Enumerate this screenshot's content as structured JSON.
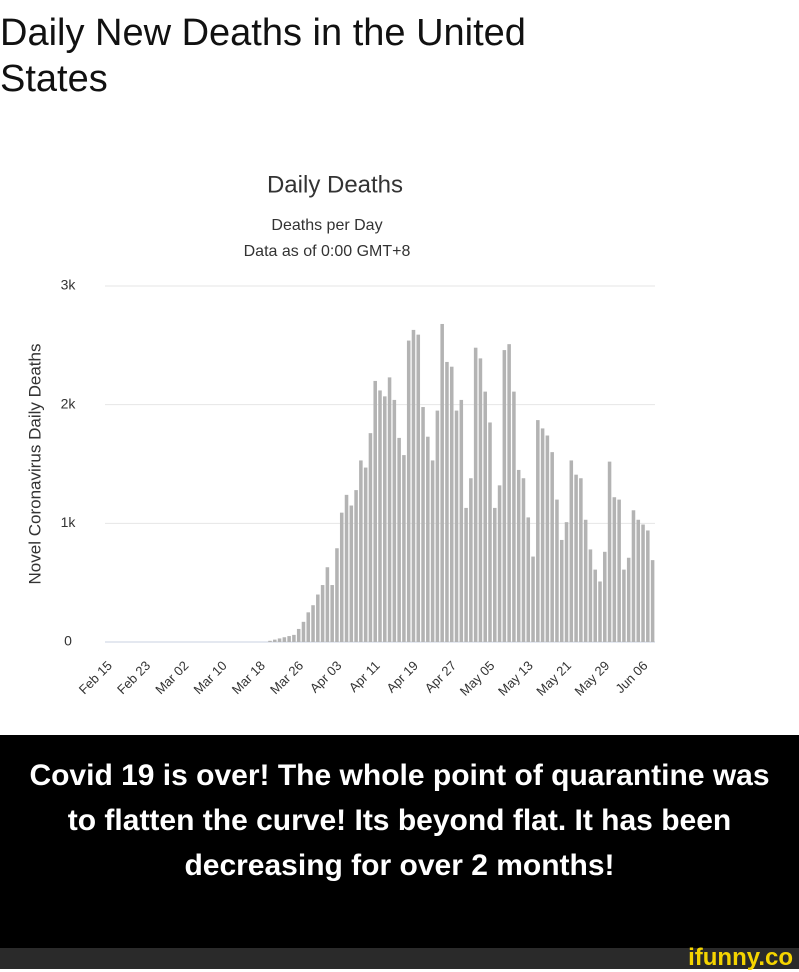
{
  "header": {
    "title": "Daily New Deaths in the United States"
  },
  "chart_data": {
    "type": "bar",
    "title": "Daily Deaths",
    "subtitle": "Deaths per Day",
    "note": "Data as of 0:00 GMT+8",
    "y_label": "Novel Coronavirus Daily Deaths",
    "categories": [
      "Feb 15",
      null,
      null,
      null,
      null,
      null,
      null,
      null,
      "Feb 23",
      null,
      null,
      null,
      null,
      null,
      null,
      null,
      "Mar 02",
      null,
      null,
      null,
      null,
      null,
      null,
      null,
      "Mar 10",
      null,
      null,
      null,
      null,
      null,
      null,
      null,
      "Mar 18",
      null,
      null,
      null,
      null,
      null,
      null,
      null,
      "Mar 26",
      null,
      null,
      null,
      null,
      null,
      null,
      null,
      "Apr 03",
      null,
      null,
      null,
      null,
      null,
      null,
      null,
      "Apr 11",
      null,
      null,
      null,
      null,
      null,
      null,
      null,
      "Apr 19",
      null,
      null,
      null,
      null,
      null,
      null,
      null,
      "Apr 27",
      null,
      null,
      null,
      null,
      null,
      null,
      null,
      "May 05",
      null,
      null,
      null,
      null,
      null,
      null,
      null,
      "May 13",
      null,
      null,
      null,
      null,
      null,
      null,
      null,
      "May 21",
      null,
      null,
      null,
      null,
      null,
      null,
      null,
      "May 29",
      null,
      null,
      null,
      null,
      null,
      null,
      null,
      "Jun 06",
      null,
      null
    ],
    "values": [
      0,
      0,
      0,
      0,
      0,
      0,
      0,
      0,
      0,
      0,
      0,
      0,
      0,
      0,
      0,
      0,
      0,
      0,
      0,
      0,
      0,
      0,
      0,
      0,
      0,
      0,
      0,
      0,
      0,
      0,
      0,
      0,
      0,
      0,
      10,
      20,
      30,
      40,
      50,
      60,
      110,
      170,
      250,
      310,
      400,
      480,
      630,
      480,
      790,
      1090,
      1240,
      1150,
      1280,
      1530,
      1470,
      1760,
      2200,
      2120,
      2070,
      2230,
      2040,
      1720,
      1575,
      2540,
      2630,
      2590,
      1980,
      1730,
      1530,
      1950,
      2680,
      2360,
      2320,
      1950,
      2040,
      1130,
      1380,
      2480,
      2390,
      2110,
      1850,
      1130,
      1320,
      2460,
      2510,
      2110,
      1450,
      1380,
      1050,
      720,
      1870,
      1800,
      1740,
      1600,
      1200,
      860,
      1010,
      1530,
      1410,
      1380,
      1030,
      780,
      610,
      510,
      760,
      1520,
      1220,
      1200,
      610,
      710,
      1110,
      1030,
      990,
      940,
      690
    ],
    "color": "#b3b3b3",
    "ylim": [
      0,
      3000
    ],
    "yticks": [
      0,
      {
        "value": 1000,
        "label": "1k"
      },
      {
        "value": 2000,
        "label": "2k"
      },
      {
        "value": 3000,
        "label": "3k"
      }
    ],
    "grid": true
  },
  "caption": "Covid 19 is over! The whole point of quarantine was to flatten the curve! Its beyond flat. It has been decreasing for over 2 months!",
  "watermark": "ifunny.co"
}
